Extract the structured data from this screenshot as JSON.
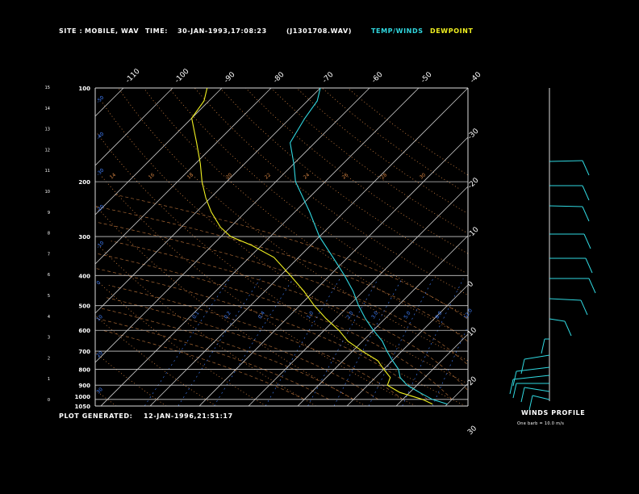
{
  "header": {
    "site_label": "SITE :",
    "site_value": "MOBILE, WAV",
    "time_label": "TIME:",
    "time_value": "30-JAN-1993,17:08:23",
    "file_value": "(J1301708.WAV)",
    "legend_temp": "TEMP/WINDS",
    "legend_dew": "DEWPOINT"
  },
  "footer": {
    "generated_label": "PLOT GENERATED:",
    "generated_value": "12-JAN-1996,21:51:17",
    "winds_title": "WINDS PROFILE",
    "winds_note": "One barb = 10.0 m/s"
  },
  "colors": {
    "temp": "#30d8e0",
    "dewpoint": "#f0f020",
    "isobar": "#c8c8c8",
    "isotherm": "#c8c8c8",
    "dry_adiabat": "#d08040",
    "moist_adiabat": "#d08040",
    "mixing_ratio": "#4080ff"
  },
  "chart_data": {
    "type": "line",
    "pressure_labels": [
      "100",
      "200",
      "300",
      "400",
      "500",
      "600",
      "700",
      "800",
      "900",
      "1000",
      "1050"
    ],
    "height_labels": [
      "0",
      "1",
      "2",
      "3",
      "4",
      "5",
      "6",
      "7",
      "8",
      "9",
      "10",
      "11",
      "12",
      "13",
      "14",
      "15"
    ],
    "isotherm_labels": [
      "-110",
      "-100",
      "-90",
      "-80",
      "-70",
      "-60",
      "-50",
      "-40",
      "-30",
      "-20",
      "-10",
      "0",
      "10",
      "20",
      "30"
    ],
    "ylim_pressure": [
      100,
      1050
    ],
    "series": [
      {
        "name": "TEMP/WINDS",
        "points": [
          [
            1035,
            20
          ],
          [
            1000,
            16
          ],
          [
            950,
            12
          ],
          [
            900,
            8
          ],
          [
            850,
            5
          ],
          [
            800,
            3
          ],
          [
            750,
            0
          ],
          [
            700,
            -3
          ],
          [
            650,
            -6
          ],
          [
            600,
            -10
          ],
          [
            550,
            -14
          ],
          [
            500,
            -18
          ],
          [
            450,
            -22
          ],
          [
            400,
            -27
          ],
          [
            350,
            -33
          ],
          [
            300,
            -40
          ],
          [
            250,
            -47
          ],
          [
            200,
            -56
          ],
          [
            175,
            -60
          ],
          [
            150,
            -65
          ],
          [
            125,
            -67
          ],
          [
            110,
            -68
          ],
          [
            100,
            -70
          ]
        ]
      },
      {
        "name": "DEWPOINT",
        "points": [
          [
            1035,
            17
          ],
          [
            1000,
            14
          ],
          [
            950,
            8
          ],
          [
            900,
            4
          ],
          [
            850,
            3
          ],
          [
            800,
            0
          ],
          [
            750,
            -3
          ],
          [
            700,
            -8
          ],
          [
            650,
            -13
          ],
          [
            600,
            -17
          ],
          [
            550,
            -22
          ],
          [
            500,
            -27
          ],
          [
            450,
            -32
          ],
          [
            400,
            -38
          ],
          [
            350,
            -45
          ],
          [
            320,
            -52
          ],
          [
            300,
            -58
          ],
          [
            280,
            -62
          ],
          [
            250,
            -67
          ],
          [
            225,
            -71
          ],
          [
            200,
            -75
          ],
          [
            175,
            -79
          ],
          [
            150,
            -84
          ],
          [
            125,
            -90
          ],
          [
            110,
            -91
          ],
          [
            100,
            -93
          ]
        ]
      }
    ],
    "dry_adiabat_labels": [
      "-50",
      "-40",
      "-30",
      "-20",
      "-10",
      "0",
      "10",
      "20",
      "30"
    ],
    "moist_adiabat_labels": [
      "14",
      "16",
      "18",
      "20",
      "22",
      "24",
      "26",
      "28",
      "30"
    ],
    "mixing_ratio_labels": [
      "0.1",
      "0.2",
      "0.4",
      "1.0",
      "2.0",
      "3.0",
      "5.0",
      "8.0",
      "12.0",
      "20.0"
    ]
  }
}
